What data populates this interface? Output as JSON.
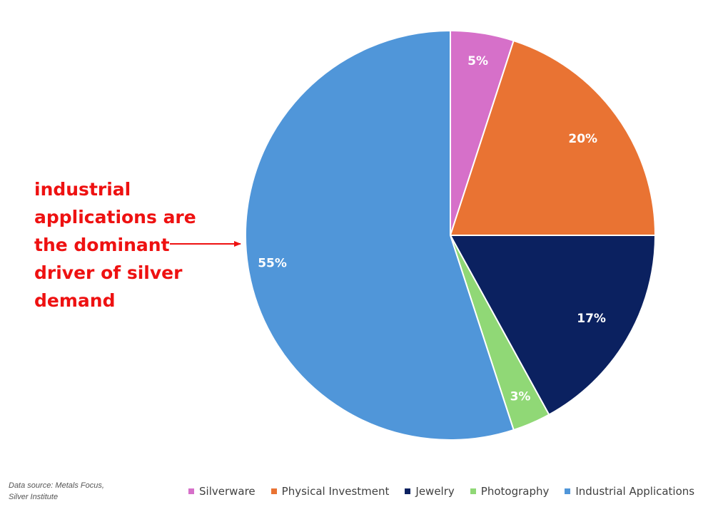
{
  "chart_data": {
    "type": "pie",
    "categories": [
      "Silverware",
      "Physical Investment",
      "Jewelry",
      "Photography",
      "Industrial Applications"
    ],
    "values": [
      5,
      20,
      17,
      3,
      55
    ],
    "labels": [
      "5%",
      "20%",
      "17%",
      "3%",
      "55%"
    ],
    "colors": [
      "#d670c9",
      "#e97333",
      "#0b2160",
      "#90d876",
      "#5096d9"
    ],
    "legend_position": "bottom"
  },
  "annotation": {
    "text": "industrial applications are the dominant driver of silver demand",
    "color": "#ee1111"
  },
  "source": {
    "text": "Data source: Metals Focus, Silver Institute"
  },
  "legend": {
    "items": [
      {
        "label": "Silverware",
        "color": "#d670c9"
      },
      {
        "label": "Physical Investment",
        "color": "#e97333"
      },
      {
        "label": "Jewelry",
        "color": "#0b2160"
      },
      {
        "label": "Photography",
        "color": "#90d876"
      },
      {
        "label": "Industrial Applications",
        "color": "#5096d9"
      }
    ]
  }
}
